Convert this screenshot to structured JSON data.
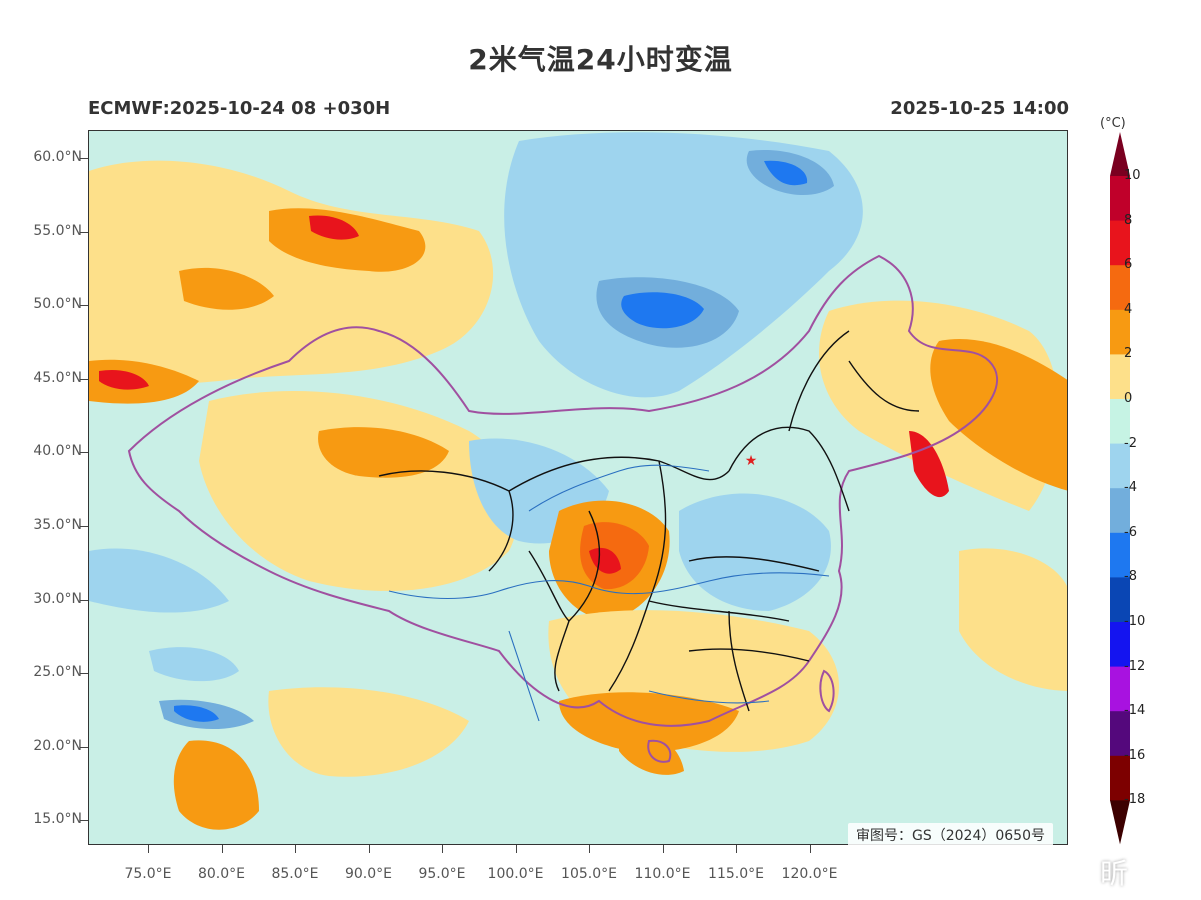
{
  "title": "2米气温24小时变温",
  "subtitle_left": "ECMWF:2025-10-24 08 +030H",
  "subtitle_right": "2025-10-25 14:00",
  "lat_labels": [
    "60.0°N",
    "55.0°N",
    "50.0°N",
    "45.0°N",
    "40.0°N",
    "35.0°N",
    "30.0°N",
    "25.0°N",
    "20.0°N",
    "15.0°N"
  ],
  "lon_labels": [
    "75.0°E",
    "80.0°E",
    "85.0°E",
    "90.0°E",
    "95.0°E",
    "100.0°E",
    "105.0°E",
    "110.0°E",
    "115.0°E",
    "120.0°E"
  ],
  "colorbar": {
    "unit": "(°C)",
    "labels": [
      "10",
      "8",
      "6",
      "4",
      "2",
      "0",
      "-2",
      "-4",
      "-6",
      "-8",
      "-10",
      "-12",
      "-14",
      "-16",
      "-18"
    ],
    "colors": [
      "#7a0020",
      "#c0002a",
      "#e8141c",
      "#f56a10",
      "#f79a12",
      "#fde08a",
      "#c6f3e4",
      "#9ed4ee",
      "#72aedc",
      "#1e78f0",
      "#0a46b4",
      "#1414f0",
      "#a812e0",
      "#54087c",
      "#7d0000",
      "#3c0000"
    ]
  },
  "map_stamp": "审图号：GS（2024）0650号",
  "watermark": "昕",
  "colors": {
    "province_border": "#111111",
    "country_border": "#a050a0",
    "river": "#2a6fc0",
    "city_marker": "#e02020"
  }
}
